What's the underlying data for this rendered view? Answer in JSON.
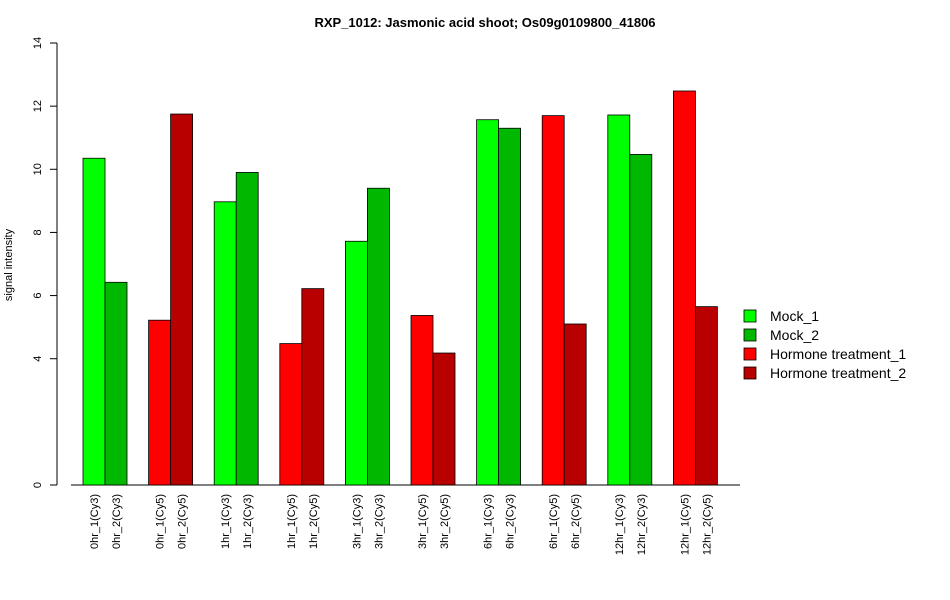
{
  "chart_data": {
    "type": "bar",
    "title": "RXP_1012: Jasmonic acid shoot; Os09g0109800_41806",
    "xlabel": "",
    "ylabel": "signal intensity",
    "ylim": [
      0,
      14
    ],
    "yticks": [
      0,
      4,
      6,
      8,
      10,
      12,
      14
    ],
    "grid": false,
    "legend_position": "right",
    "categories": [
      "0hr_1(Cy3)",
      "0hr_2(Cy3)",
      "0hr_1(Cy5)",
      "0hr_2(Cy5)",
      "1hr_1(Cy3)",
      "1hr_2(Cy3)",
      "1hr_1(Cy5)",
      "1hr_2(Cy5)",
      "3hr_1(Cy3)",
      "3hr_2(Cy3)",
      "3hr_1(Cy5)",
      "3hr_2(Cy5)",
      "6hr_1(Cy3)",
      "6hr_2(Cy3)",
      "6hr_1(Cy5)",
      "6hr_2(Cy5)",
      "12hr_1(Cy3)",
      "12hr_2(Cy3)",
      "12hr_1(Cy5)",
      "12hr_2(Cy5)"
    ],
    "values": [
      10.35,
      6.42,
      5.22,
      11.75,
      8.97,
      9.9,
      4.48,
      6.22,
      7.72,
      9.4,
      5.37,
      4.18,
      11.57,
      11.3,
      11.7,
      5.1,
      11.72,
      10.47,
      12.48,
      5.65
    ],
    "bar_series": [
      "Mock_1",
      "Mock_2",
      "Hormone treatment_1",
      "Hormone treatment_2",
      "Mock_1",
      "Mock_2",
      "Hormone treatment_1",
      "Hormone treatment_2",
      "Mock_1",
      "Mock_2",
      "Hormone treatment_1",
      "Hormone treatment_2",
      "Mock_1",
      "Mock_2",
      "Hormone treatment_1",
      "Hormone treatment_2",
      "Mock_1",
      "Mock_2",
      "Hormone treatment_1",
      "Hormone treatment_2"
    ],
    "series": [
      {
        "name": "Mock_1",
        "color": "#00ff00"
      },
      {
        "name": "Mock_2",
        "color": "#00b800"
      },
      {
        "name": "Hormone treatment_1",
        "color": "#ff0000"
      },
      {
        "name": "Hormone treatment_2",
        "color": "#b80000"
      }
    ]
  }
}
